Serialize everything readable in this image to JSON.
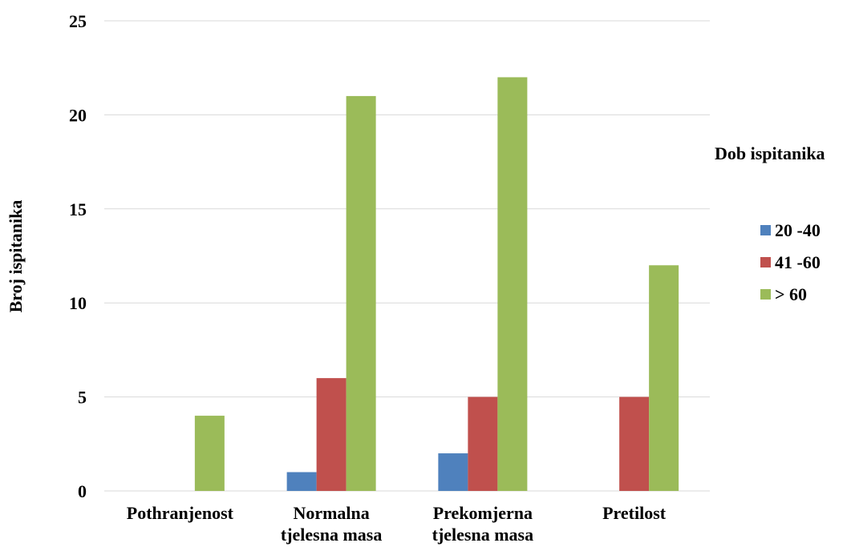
{
  "chart_data": {
    "type": "bar",
    "title": "",
    "ylabel": "Broj ispitanika",
    "xlabel": "",
    "categories": [
      [
        "Pothranjenost"
      ],
      [
        "Normalna",
        "tjelesna masa"
      ],
      [
        "Prekomjerna",
        "tjelesna masa"
      ],
      [
        "Pretilost"
      ]
    ],
    "series": [
      {
        "name": "20 -40",
        "color": "#4f81bd",
        "values": [
          0,
          1,
          2,
          0
        ]
      },
      {
        "name": "41 -60",
        "color": "#c0504d",
        "values": [
          0,
          6,
          5,
          5
        ]
      },
      {
        "name": "> 60",
        "color": "#9bbb59",
        "values": [
          4,
          21,
          22,
          12
        ]
      }
    ],
    "ylim": [
      0,
      25
    ],
    "yticks": [
      "0",
      "5",
      "10",
      "15",
      "20",
      "25"
    ],
    "grid": true,
    "legend": {
      "title": "Dob ispitanika",
      "placement": "right"
    }
  }
}
